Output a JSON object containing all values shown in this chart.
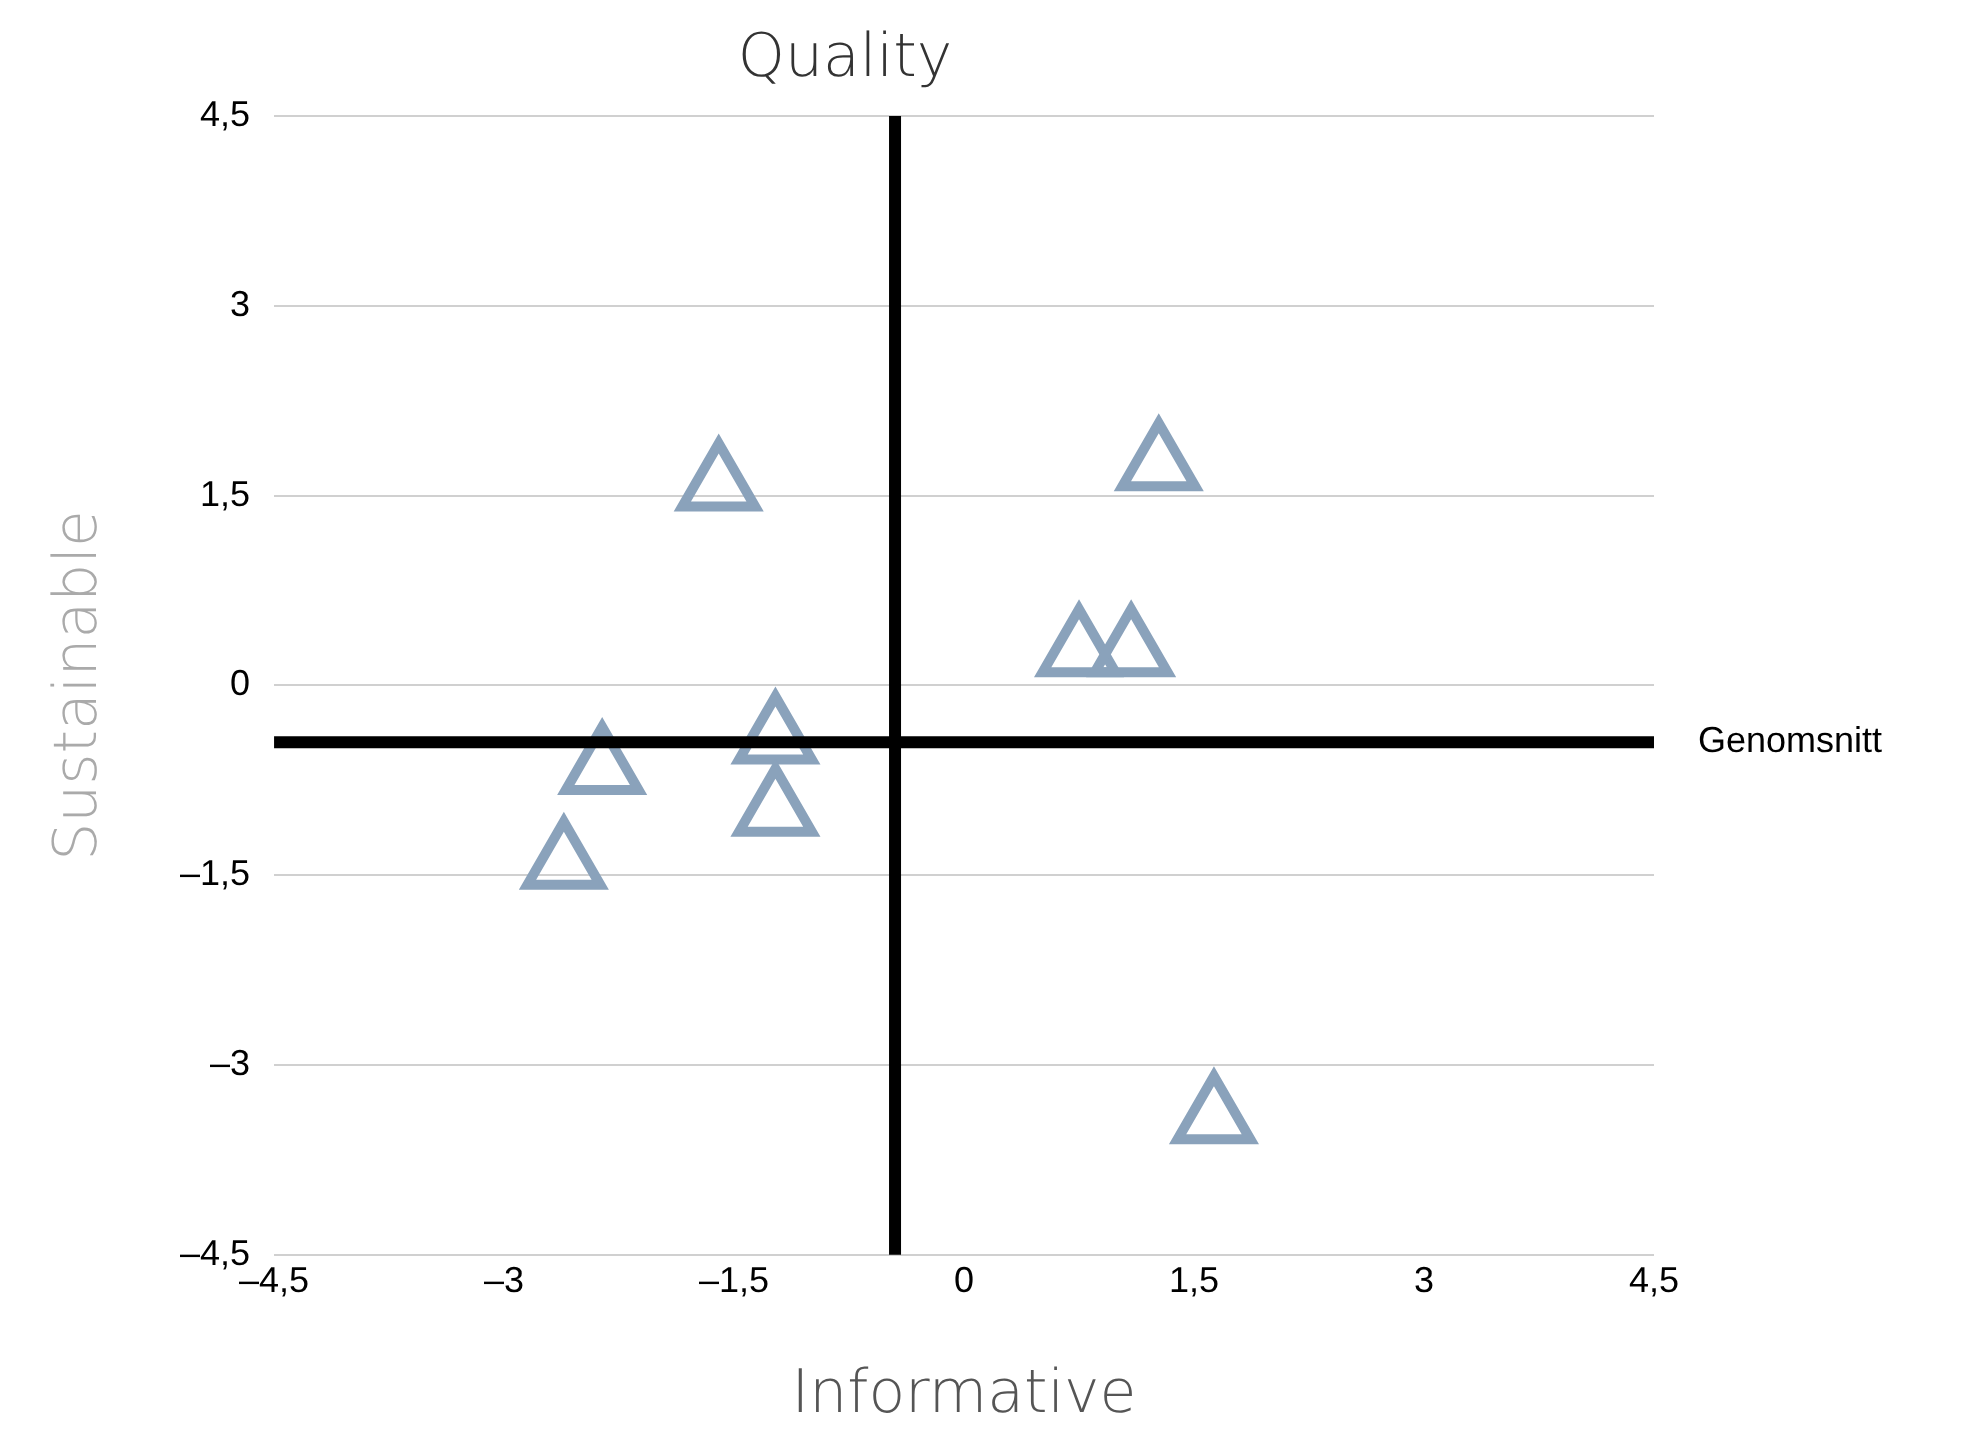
{
  "chart_data": {
    "type": "scatter",
    "title": "Quality",
    "xlabel": "Informative",
    "ylabel": "Sustainable",
    "series": [
      {
        "color": "#8aa2bb",
        "x": [
          -1.6,
          1.27,
          0.75,
          1.09,
          -1.23,
          -1.23,
          -2.36,
          -2.61,
          1.63
        ],
        "values": [
          1.58,
          1.74,
          0.27,
          0.27,
          -0.42,
          -0.99,
          -0.66,
          -1.41,
          -3.42
        ]
      }
    ],
    "xlim": [
      -4.5,
      4.5
    ],
    "ylim": [
      -4.5,
      4.5
    ],
    "xticks": [
      {
        "value": -4.5,
        "label": "–4,5"
      },
      {
        "value": -3,
        "label": "–3"
      },
      {
        "value": -1.5,
        "label": "–1,5"
      },
      0,
      {
        "value": 1.5,
        "label": "1,5"
      },
      3,
      {
        "value": 4.5,
        "label": "4,5"
      }
    ],
    "yticks": [
      {
        "value": -4.5,
        "label": "–4,5"
      },
      {
        "value": -3,
        "label": "–3"
      },
      {
        "value": -1.5,
        "label": "–1,5"
      },
      0,
      {
        "value": 1.5,
        "label": "1,5"
      },
      3,
      {
        "value": 4.5,
        "label": "4,5"
      }
    ],
    "ref_lines": [
      {
        "axis": "y",
        "value": -0.45,
        "label": "Genomsnitt",
        "color": "#000000"
      },
      {
        "axis": "x",
        "value": -0.45,
        "color": "#000000"
      }
    ],
    "grid": "y",
    "marker": "triangle",
    "legend": false
  }
}
